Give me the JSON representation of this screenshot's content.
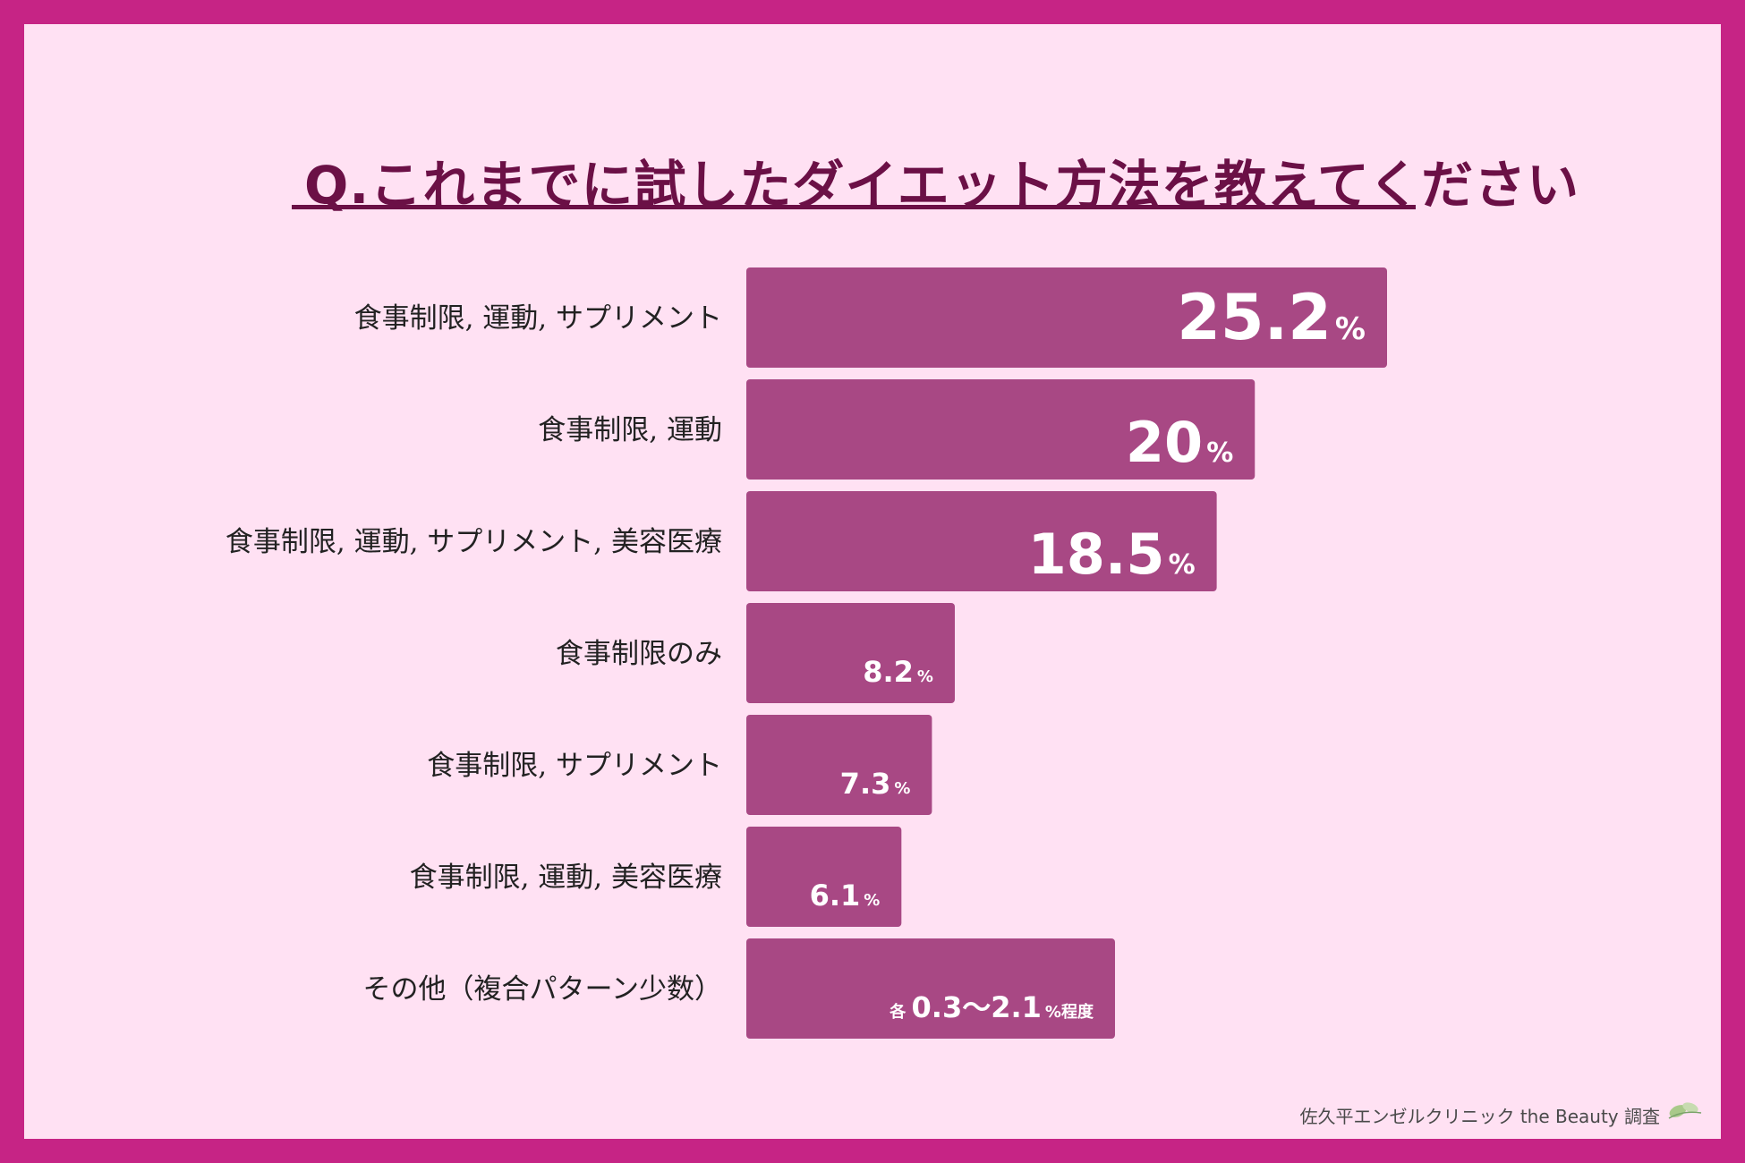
{
  "title": "Q.これまでに試したダイエット方法を教えてください",
  "footer": "佐久平エンゼルクリニック the Beauty 調査",
  "colors": {
    "frame": "#c62485",
    "background": "#ffe1f3",
    "bar": "#a84884",
    "title": "#6b1046"
  },
  "chart_data": {
    "type": "bar",
    "orientation": "horizontal",
    "title": "Q.これまでに試したダイエット方法を教えてください",
    "unit": "%",
    "categories": [
      "食事制限, 運動, サプリメント",
      "食事制限, 運動",
      "食事制限, 運動, サプリメント, 美容医療",
      "食事制限のみ",
      "食事制限, サプリメント",
      "食事制限, 運動, 美容医療",
      "その他（複合パターン少数）"
    ],
    "values": [
      25.2,
      20,
      18.5,
      8.2,
      7.3,
      6.1,
      14.5
    ],
    "labels": [
      {
        "value": "25.2",
        "unit": "%"
      },
      {
        "value": "20",
        "unit": "%"
      },
      {
        "value": "18.5",
        "unit": "%"
      },
      {
        "value": "8.2",
        "unit": "%"
      },
      {
        "value": "7.3",
        "unit": "%"
      },
      {
        "value": "6.1",
        "unit": "%"
      },
      {
        "prefix": "各",
        "value": "0.3〜2.1",
        "unit": "%程度"
      }
    ],
    "xlim": [
      0,
      25.2
    ],
    "grid": false,
    "legend": "none"
  }
}
